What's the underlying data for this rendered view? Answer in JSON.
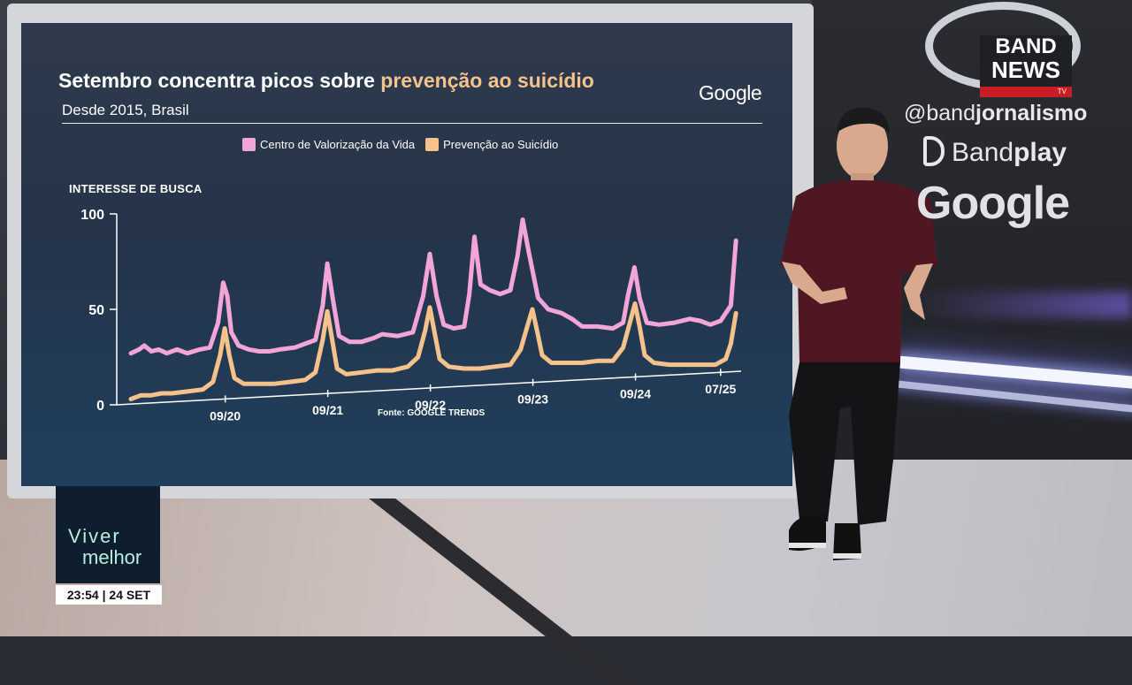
{
  "chart_data": {
    "type": "line",
    "title": "Setembro concentra picos sobre",
    "title_highlight": "prevenção ao suicídio",
    "subtitle": "Desde 2015, Brasil",
    "brand": "Google",
    "ylabel": "INTERESSE DE BUSCA",
    "source": "Fonte: GOOGLE TRENDS",
    "ylim": [
      0,
      100
    ],
    "y_ticks": [
      "100",
      "50",
      "0"
    ],
    "x_ticks": [
      {
        "label": "09/20",
        "x": 2020.67
      },
      {
        "label": "09/21",
        "x": 2021.67
      },
      {
        "label": "09/22",
        "x": 2022.67
      },
      {
        "label": "09/23",
        "x": 2023.67
      },
      {
        "label": "09/24",
        "x": 2024.67
      },
      {
        "label": "07/25",
        "x": 2025.5
      }
    ],
    "xlim": [
      2019.75,
      2025.7
    ],
    "grid": false,
    "legend_position": "top",
    "colors": {
      "series1": "#f4a5d8",
      "series2": "#f6c28c"
    },
    "series": [
      {
        "name": "Centro de Valorização da Vida",
        "color": "#f4a5d8",
        "points": [
          [
            2019.75,
            27
          ],
          [
            2019.83,
            29
          ],
          [
            2019.88,
            31
          ],
          [
            2019.95,
            28
          ],
          [
            2020.02,
            29
          ],
          [
            2020.1,
            27
          ],
          [
            2020.2,
            29
          ],
          [
            2020.3,
            27
          ],
          [
            2020.42,
            29
          ],
          [
            2020.52,
            30
          ],
          [
            2020.6,
            43
          ],
          [
            2020.65,
            64
          ],
          [
            2020.69,
            57
          ],
          [
            2020.73,
            38
          ],
          [
            2020.8,
            31
          ],
          [
            2020.9,
            29
          ],
          [
            2021.0,
            28
          ],
          [
            2021.1,
            28
          ],
          [
            2021.2,
            29
          ],
          [
            2021.35,
            30
          ],
          [
            2021.45,
            32
          ],
          [
            2021.55,
            34
          ],
          [
            2021.62,
            52
          ],
          [
            2021.665,
            74
          ],
          [
            2021.72,
            55
          ],
          [
            2021.78,
            36
          ],
          [
            2021.88,
            33
          ],
          [
            2022.0,
            33
          ],
          [
            2022.12,
            35
          ],
          [
            2022.2,
            37
          ],
          [
            2022.35,
            36
          ],
          [
            2022.5,
            38
          ],
          [
            2022.6,
            57
          ],
          [
            2022.665,
            79
          ],
          [
            2022.73,
            57
          ],
          [
            2022.8,
            42
          ],
          [
            2022.9,
            40
          ],
          [
            2023.0,
            41
          ],
          [
            2023.05,
            58
          ],
          [
            2023.1,
            88
          ],
          [
            2023.16,
            63
          ],
          [
            2023.25,
            60
          ],
          [
            2023.35,
            58
          ],
          [
            2023.45,
            60
          ],
          [
            2023.52,
            78
          ],
          [
            2023.57,
            97
          ],
          [
            2023.63,
            80
          ],
          [
            2023.72,
            56
          ],
          [
            2023.82,
            50
          ],
          [
            2023.95,
            48
          ],
          [
            2024.05,
            45
          ],
          [
            2024.15,
            41
          ],
          [
            2024.3,
            41
          ],
          [
            2024.45,
            40
          ],
          [
            2024.55,
            43
          ],
          [
            2024.6,
            58
          ],
          [
            2024.66,
            72
          ],
          [
            2024.71,
            56
          ],
          [
            2024.78,
            43
          ],
          [
            2024.9,
            42
          ],
          [
            2025.05,
            43
          ],
          [
            2025.2,
            45
          ],
          [
            2025.3,
            44
          ],
          [
            2025.4,
            42
          ],
          [
            2025.5,
            44
          ],
          [
            2025.6,
            52
          ],
          [
            2025.65,
            86
          ]
        ]
      },
      {
        "name": "Prevenção ao Suicídio",
        "color": "#f6c28c",
        "points": [
          [
            2019.75,
            3
          ],
          [
            2019.85,
            5
          ],
          [
            2019.95,
            5
          ],
          [
            2020.05,
            6
          ],
          [
            2020.15,
            6
          ],
          [
            2020.3,
            7
          ],
          [
            2020.45,
            8
          ],
          [
            2020.55,
            12
          ],
          [
            2020.62,
            26
          ],
          [
            2020.665,
            40
          ],
          [
            2020.71,
            26
          ],
          [
            2020.76,
            14
          ],
          [
            2020.85,
            11
          ],
          [
            2021.0,
            11
          ],
          [
            2021.15,
            11
          ],
          [
            2021.3,
            12
          ],
          [
            2021.45,
            13
          ],
          [
            2021.55,
            17
          ],
          [
            2021.62,
            34
          ],
          [
            2021.665,
            49
          ],
          [
            2021.71,
            35
          ],
          [
            2021.76,
            19
          ],
          [
            2021.85,
            16
          ],
          [
            2022.0,
            17
          ],
          [
            2022.15,
            18
          ],
          [
            2022.3,
            18
          ],
          [
            2022.45,
            20
          ],
          [
            2022.55,
            25
          ],
          [
            2022.62,
            39
          ],
          [
            2022.665,
            51
          ],
          [
            2022.71,
            38
          ],
          [
            2022.76,
            24
          ],
          [
            2022.85,
            20
          ],
          [
            2023.0,
            19
          ],
          [
            2023.15,
            19
          ],
          [
            2023.3,
            20
          ],
          [
            2023.45,
            21
          ],
          [
            2023.55,
            29
          ],
          [
            2023.62,
            42
          ],
          [
            2023.665,
            50
          ],
          [
            2023.71,
            39
          ],
          [
            2023.76,
            26
          ],
          [
            2023.85,
            22
          ],
          [
            2024.0,
            22
          ],
          [
            2024.15,
            22
          ],
          [
            2024.3,
            23
          ],
          [
            2024.45,
            23
          ],
          [
            2024.55,
            30
          ],
          [
            2024.62,
            44
          ],
          [
            2024.665,
            53
          ],
          [
            2024.71,
            41
          ],
          [
            2024.76,
            26
          ],
          [
            2024.85,
            22
          ],
          [
            2025.0,
            21
          ],
          [
            2025.15,
            21
          ],
          [
            2025.3,
            21
          ],
          [
            2025.45,
            21
          ],
          [
            2025.55,
            24
          ],
          [
            2025.6,
            32
          ],
          [
            2025.65,
            48
          ]
        ]
      }
    ]
  },
  "logos": {
    "band_line1": "BAND",
    "band_line2": "NEWS",
    "band_tv": "TV",
    "handle_a": "@band",
    "handle_b": "jornalismo",
    "bandplay_a": "Band",
    "bandplay_b": "play",
    "google": "Google"
  },
  "badge": {
    "line1": "Viver",
    "line2": "melhor",
    "time": "23:54",
    "sep": " | ",
    "date": "24 SET"
  }
}
